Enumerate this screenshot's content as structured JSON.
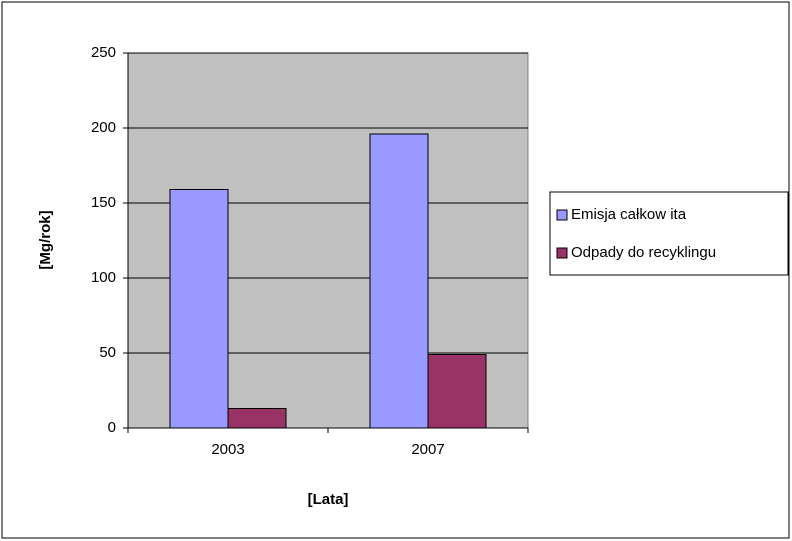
{
  "chart_data": {
    "type": "bar",
    "categories": [
      "2003",
      "2007"
    ],
    "series": [
      {
        "name": "Emisja całkow ita",
        "color": "#9999ff",
        "values": [
          159,
          196
        ]
      },
      {
        "name": "Odpady do recyklingu",
        "color": "#993366",
        "values": [
          13,
          49
        ]
      }
    ],
    "x_label": "[Lata]",
    "y_label": "[Mg/rok]",
    "ylim": [
      0,
      250
    ],
    "yticks": [
      0,
      50,
      100,
      150,
      200,
      250
    ],
    "grid": true,
    "legend": "right"
  }
}
